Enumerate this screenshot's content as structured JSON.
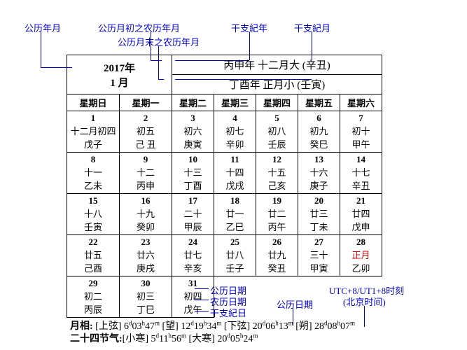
{
  "labels": {
    "gongli_ym": "公历年月",
    "start_lunar": "公历月初之农历年月",
    "end_lunar": "公历月末之农历年月",
    "ganzhi_year": "干支紀年",
    "ganzhi_month": "干支紀月",
    "gongli_date": "公历日期",
    "nongli_date": "农历日期",
    "ganzhi_day": "干支紀日",
    "gongli_date2": "公历日期",
    "tz_note1": "UTC+8/UT1+8时刻",
    "tz_note2": "(北京时间)"
  },
  "header": {
    "year": "2017年",
    "month": "1 月",
    "line1": "丙申年 十二月大 (辛丑)",
    "line2": "丁酉年 正月小 (壬寅)"
  },
  "weekdays": [
    "星期日",
    "星期一",
    "星期二",
    "星期三",
    "星期四",
    "星期五",
    "星期六"
  ],
  "rows": [
    [
      {
        "g": "1",
        "l": "十二月初四",
        "s": "戊子"
      },
      {
        "g": "2",
        "l": "初五",
        "s": "己 丑"
      },
      {
        "g": "3",
        "l": "初六",
        "s": "庚寅"
      },
      {
        "g": "4",
        "l": "初七",
        "s": "辛卯"
      },
      {
        "g": "5",
        "l": "初八",
        "s": "壬辰"
      },
      {
        "g": "6",
        "l": "初九",
        "s": "癸巳"
      },
      {
        "g": "7",
        "l": "初十",
        "s": "甲午"
      }
    ],
    [
      {
        "g": "8",
        "l": "十一",
        "s": "乙未"
      },
      {
        "g": "9",
        "l": "十二",
        "s": "丙申"
      },
      {
        "g": "10",
        "l": "十三",
        "s": "丁酉"
      },
      {
        "g": "11",
        "l": "十四",
        "s": "戊戌"
      },
      {
        "g": "12",
        "l": "十五",
        "s": "己亥"
      },
      {
        "g": "13",
        "l": "十六",
        "s": "庚子"
      },
      {
        "g": "14",
        "l": "十七",
        "s": "辛丑"
      }
    ],
    [
      {
        "g": "15",
        "l": "十八",
        "s": "壬寅"
      },
      {
        "g": "16",
        "l": "十九",
        "s": "癸卯"
      },
      {
        "g": "17",
        "l": "二十",
        "s": "甲辰"
      },
      {
        "g": "18",
        "l": "廿一",
        "s": "乙巳"
      },
      {
        "g": "19",
        "l": "廿二",
        "s": "丙午"
      },
      {
        "g": "20",
        "l": "廿三",
        "s": "丁未"
      },
      {
        "g": "21",
        "l": "廿四",
        "s": "戊申"
      }
    ],
    [
      {
        "g": "22",
        "l": "廿五",
        "s": "己酉"
      },
      {
        "g": "23",
        "l": "廿六",
        "s": "庚戌"
      },
      {
        "g": "24",
        "l": "廿七",
        "s": "辛亥"
      },
      {
        "g": "25",
        "l": "廿八",
        "s": "壬子"
      },
      {
        "g": "26",
        "l": "廿九",
        "s": "癸丑"
      },
      {
        "g": "27",
        "l": "三十",
        "s": "甲寅"
      },
      {
        "g": "28",
        "l": "正月",
        "s": "乙卯",
        "red": true
      }
    ],
    [
      {
        "g": "29",
        "l": "初二",
        "s": "丙辰"
      },
      {
        "g": "30",
        "l": "初三",
        "s": "丁巳"
      },
      {
        "g": "31",
        "l": "初四",
        "s": "戊午"
      }
    ]
  ],
  "foot": {
    "moon_label": "月相:",
    "moon_parts": [
      " [上弦] 6",
      "03",
      "47",
      " [望] 12",
      "19",
      "34",
      " [下弦] 20",
      "06",
      "13",
      " [朔] 28",
      "08",
      "07",
      ""
    ],
    "solar_label": "二十四节气:",
    "solar_parts": [
      "[小寒] 5",
      "11",
      "56",
      "   [大寒] 20",
      "05",
      "24",
      ""
    ]
  },
  "colors": {
    "annot": "#0000cc",
    "red": "#cc0000"
  }
}
